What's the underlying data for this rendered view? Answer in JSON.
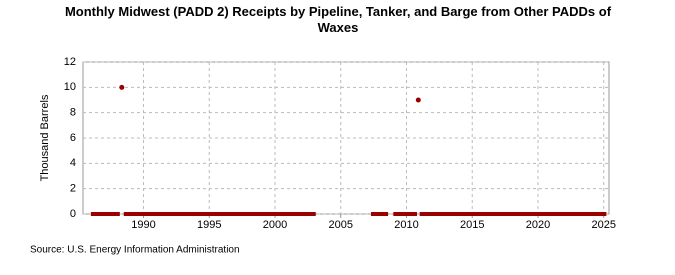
{
  "chart_data": {
    "type": "line",
    "title": "Monthly Midwest (PADD 2) Receipts by Pipeline, Tanker, and Barge from Other PADDs of Waxes",
    "ylabel": "Thousand Barrels",
    "source": "Source: U.S. Energy Information Administration",
    "x": [
      1986.0,
      1988.2,
      1988.3,
      1988.35,
      1988.4,
      1988.5,
      2003.1,
      2003.2,
      2007.3,
      2008.6,
      2008.7,
      2009.0,
      2010.8,
      2010.85,
      2010.9,
      2010.95,
      2011.0,
      2025.2
    ],
    "series": [
      {
        "name": "Waxes",
        "color": "#990000",
        "values": [
          0,
          0,
          null,
          10,
          null,
          0,
          0,
          null,
          0,
          0,
          null,
          0,
          0,
          null,
          9,
          null,
          0,
          0
        ]
      }
    ],
    "xlim": [
      1985.4,
      2025.4
    ],
    "xticks": [
      1990,
      1995,
      2000,
      2005,
      2010,
      2015,
      2020,
      2025
    ],
    "ylim": [
      0,
      12
    ],
    "yticks": [
      0,
      2,
      4,
      6,
      8,
      10,
      12
    ],
    "grid": true
  }
}
